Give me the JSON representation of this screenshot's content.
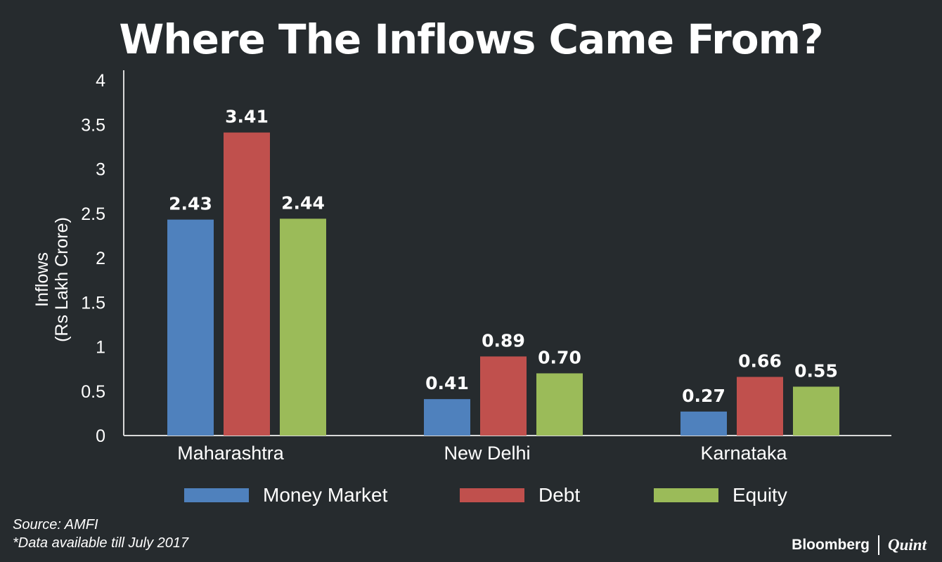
{
  "title": "Where The Inflows Came From?",
  "chart_data": {
    "type": "bar",
    "title": "Where The Inflows Came From?",
    "ylabel_line1": "Inflows",
    "ylabel_line2": "(Rs Lakh Crore)",
    "ylim": [
      0,
      4
    ],
    "yticks": [
      0,
      0.5,
      1,
      1.5,
      2,
      2.5,
      3,
      3.5,
      4
    ],
    "ytick_labels": [
      "0",
      "0.5",
      "1",
      "1.5",
      "2",
      "2.5",
      "3",
      "3.5",
      "4"
    ],
    "grid": false,
    "legend_position": "bottom",
    "categories": [
      "Maharashtra",
      "New Delhi",
      "Karnataka"
    ],
    "series": [
      {
        "name": "Money Market",
        "color": "#4f81bd",
        "values": [
          2.43,
          0.41,
          0.27
        ],
        "labels": [
          "2.43",
          "0.41",
          "0.27"
        ]
      },
      {
        "name": "Debt",
        "color": "#c0504d",
        "values": [
          3.41,
          0.89,
          0.66
        ],
        "labels": [
          "3.41",
          "0.89",
          "0.66"
        ]
      },
      {
        "name": "Equity",
        "color": "#9bbb59",
        "values": [
          2.44,
          0.7,
          0.55
        ],
        "labels": [
          "2.44",
          "0.70",
          "0.55"
        ]
      }
    ]
  },
  "footer": {
    "source": "Source: AMFI",
    "note": "*Data available till July 2017"
  },
  "brand": {
    "bloomberg": "Bloomberg",
    "quint": "Quint"
  }
}
